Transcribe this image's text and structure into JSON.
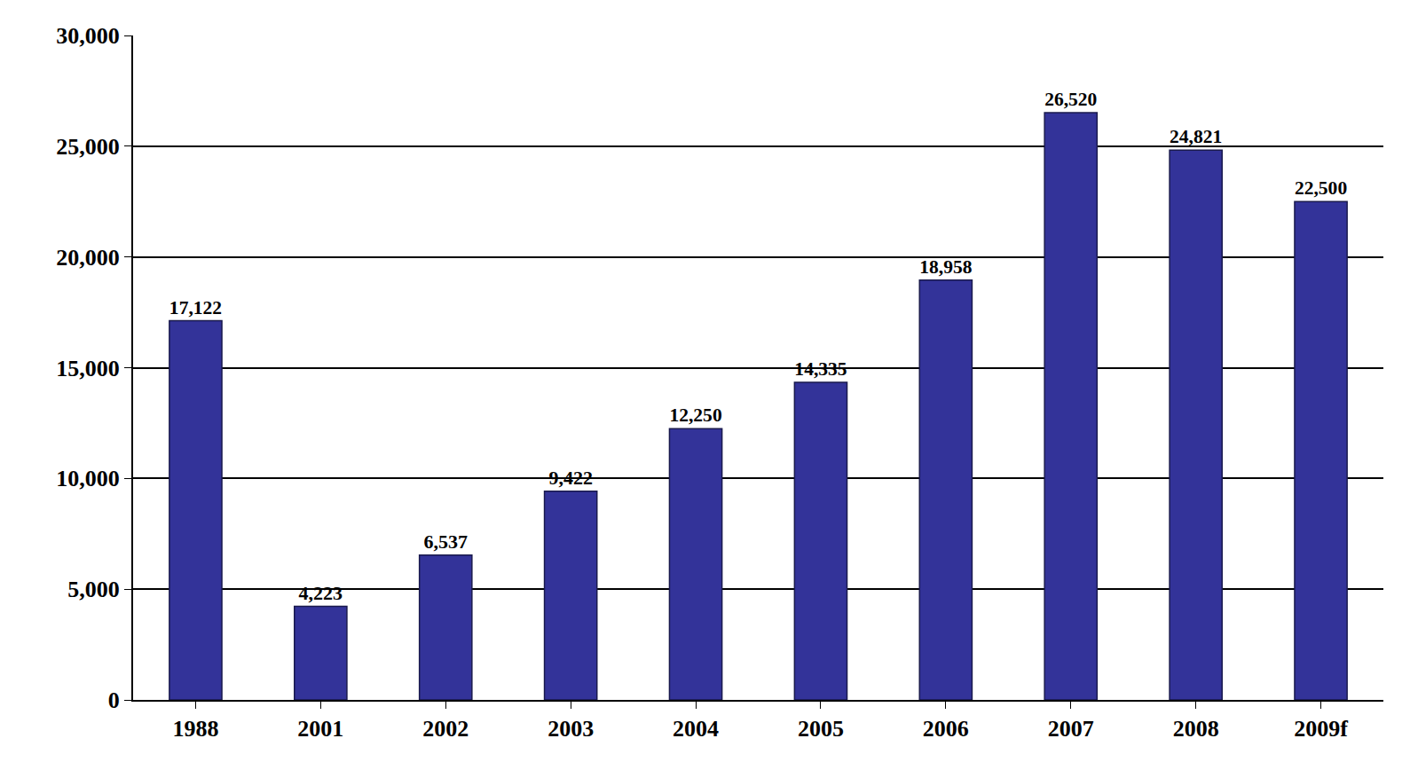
{
  "chart_data": {
    "type": "bar",
    "categories": [
      "1988",
      "2001",
      "2002",
      "2003",
      "2004",
      "2005",
      "2006",
      "2007",
      "2008",
      "2009f"
    ],
    "values": [
      17122,
      4223,
      6537,
      9422,
      12250,
      14335,
      18958,
      26520,
      24821,
      22500
    ],
    "value_labels": [
      "17,122",
      "4,223",
      "6,537",
      "9,422",
      "12,250",
      "14,335",
      "18,958",
      "26,520",
      "24,821",
      "22,500"
    ],
    "data_labels": true,
    "color": "#333399",
    "ylim": [
      0,
      30000
    ],
    "yticks": [
      0,
      {
        "value": 5000,
        "label": "5,000"
      },
      {
        "value": 10000,
        "label": "10,000"
      },
      {
        "value": 15000,
        "label": "15,000"
      },
      {
        "value": 20000,
        "label": "20,000"
      },
      {
        "value": 25000,
        "label": "25,000"
      },
      {
        "value": 30000,
        "label": "30,000"
      }
    ],
    "grid": true
  }
}
